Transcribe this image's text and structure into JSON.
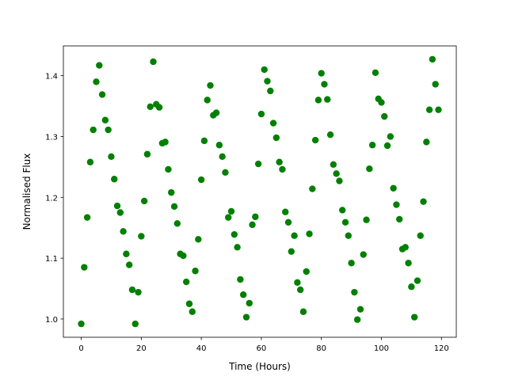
{
  "chart_data": {
    "type": "scatter",
    "xlabel": "Time (Hours)",
    "ylabel": "Normalised Flux",
    "color": "#008000",
    "grid": false,
    "xlim": [
      -5.95,
      124.95
    ],
    "xticks": [
      0,
      20,
      40,
      60,
      80,
      100,
      120
    ],
    "ylim": [
      0.97,
      1.449
    ],
    "yticks": [
      {
        "value": 1,
        "label": "1.0"
      },
      1.1,
      1.2,
      1.3,
      1.4
    ],
    "x": [
      0,
      1,
      2,
      3,
      4,
      5,
      6,
      7,
      8,
      9,
      10,
      11,
      12,
      13,
      14,
      15,
      16,
      17,
      18,
      19,
      20,
      21,
      22,
      23,
      24,
      25,
      26,
      27,
      28,
      29,
      30,
      31,
      32,
      33,
      34,
      35,
      36,
      37,
      38,
      39,
      40,
      41,
      42,
      43,
      44,
      45,
      46,
      47,
      48,
      49,
      50,
      51,
      52,
      53,
      54,
      55,
      56,
      57,
      58,
      59,
      60,
      61,
      62,
      63,
      64,
      65,
      66,
      67,
      68,
      69,
      70,
      71,
      72,
      73,
      74,
      75,
      76,
      77,
      78,
      79,
      80,
      81,
      82,
      83,
      84,
      85,
      86,
      87,
      88,
      89,
      90,
      91,
      92,
      93,
      94,
      95,
      96,
      97,
      98,
      99,
      100,
      101,
      102,
      103,
      104,
      105,
      106,
      107,
      108,
      109,
      110,
      111,
      112,
      113,
      114,
      115,
      116,
      117,
      118,
      119
    ],
    "y": [
      0.992,
      1.085,
      1.167,
      1.258,
      1.311,
      1.39,
      1.417,
      1.369,
      1.327,
      1.311,
      1.267,
      1.23,
      1.186,
      1.175,
      1.144,
      1.107,
      1.089,
      1.048,
      0.992,
      1.044,
      1.136,
      1.194,
      1.271,
      1.349,
      1.423,
      1.353,
      1.348,
      1.289,
      1.291,
      1.246,
      1.208,
      1.185,
      1.157,
      1.107,
      1.104,
      1.061,
      1.025,
      1.012,
      1.079,
      1.131,
      1.229,
      1.293,
      1.36,
      1.384,
      1.335,
      1.339,
      1.286,
      1.267,
      1.241,
      1.167,
      1.177,
      1.139,
      1.118,
      1.065,
      1.04,
      1.003,
      1.026,
      1.155,
      1.168,
      1.255,
      1.337,
      1.41,
      1.391,
      1.375,
      1.322,
      1.298,
      1.258,
      1.246,
      1.176,
      1.159,
      1.111,
      1.137,
      1.06,
      1.048,
      1.012,
      1.078,
      1.14,
      1.214,
      1.294,
      1.36,
      1.404,
      1.386,
      1.361,
      1.303,
      1.254,
      1.239,
      1.227,
      1.179,
      1.159,
      1.137,
      1.092,
      1.044,
      0.999,
      1.016,
      1.106,
      1.163,
      1.247,
      1.286,
      1.405,
      1.362,
      1.356,
      1.333,
      1.285,
      1.3,
      1.215,
      1.188,
      1.164,
      1.115,
      1.118,
      1.092,
      1.053,
      1.003,
      1.063,
      1.137,
      1.193,
      1.291,
      1.344,
      1.427,
      1.386,
      1.344
    ]
  }
}
